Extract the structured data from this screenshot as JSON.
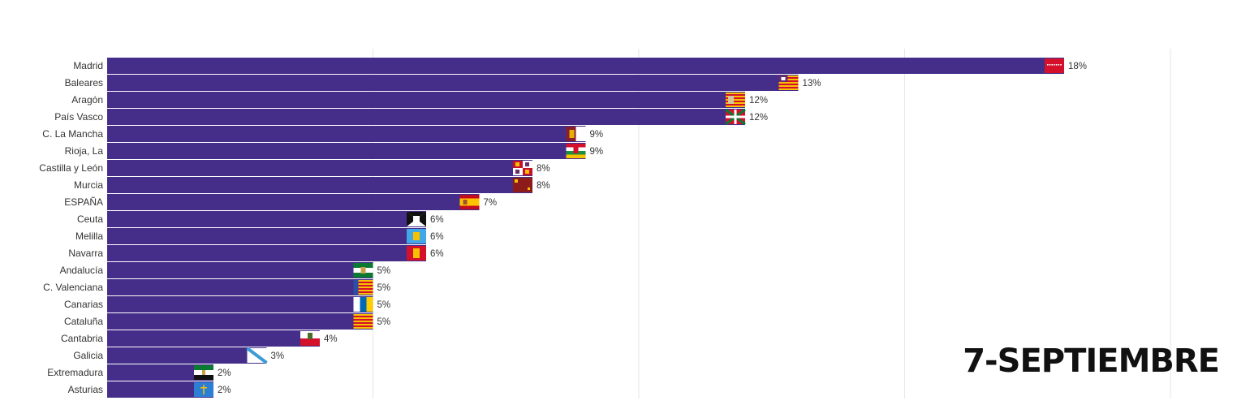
{
  "chart_data": {
    "type": "bar",
    "orientation": "horizontal",
    "title": "",
    "date_label": "7-SEPTIEMBRE",
    "xlim": [
      0,
      20
    ],
    "grid": true,
    "bar_color": "#452e8a",
    "categories": [
      "Madrid",
      "Baleares",
      "Aragón",
      "País Vasco",
      "C. La Mancha",
      "Rioja, La",
      "Castilla y León",
      "Murcia",
      "ESPAÑA",
      "Ceuta",
      "Melilla",
      "Navarra",
      "Andalucía",
      "C. Valenciana",
      "Canarias",
      "Cataluña",
      "Cantabria",
      "Galicia",
      "Extremadura",
      "Asturias"
    ],
    "values": [
      18,
      13,
      12,
      12,
      9,
      9,
      8,
      8,
      7,
      6,
      6,
      6,
      5,
      5,
      5,
      5,
      4,
      3,
      2,
      2
    ],
    "value_labels": [
      "18%",
      "13%",
      "12%",
      "12%",
      "9%",
      "9%",
      "8%",
      "8%",
      "7%",
      "6%",
      "6%",
      "6%",
      "5%",
      "5%",
      "5%",
      "5%",
      "4%",
      "3%",
      "2%",
      "2%"
    ],
    "flag_icons": [
      "flag-madrid",
      "flag-baleares",
      "flag-aragon",
      "flag-pais-vasco",
      "flag-castilla-la-mancha",
      "flag-la-rioja",
      "flag-castilla-y-leon",
      "flag-murcia",
      "flag-espana",
      "flag-ceuta",
      "flag-melilla",
      "flag-navarra",
      "flag-andalucia",
      "flag-c-valenciana",
      "flag-canarias",
      "flag-cataluna",
      "flag-cantabria",
      "flag-galicia",
      "flag-extremadura",
      "flag-asturias"
    ]
  }
}
